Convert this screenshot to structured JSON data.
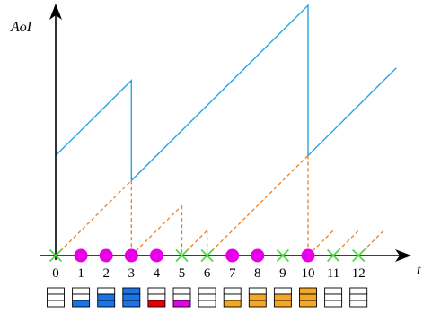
{
  "chart_data": {
    "type": "line",
    "title": "",
    "xlabel": "t",
    "ylabel": "AoI",
    "xlim": [
      0,
      13.5
    ],
    "ylim": [
      0,
      10
    ],
    "grid": false,
    "categories": [
      "0",
      "1",
      "2",
      "3",
      "4",
      "5",
      "6",
      "7",
      "8",
      "9",
      "10",
      "11",
      "12"
    ],
    "series": [
      {
        "kind": "aoi",
        "color": "#2aa3e8",
        "points": [
          [
            0,
            4
          ],
          [
            3,
            7
          ],
          [
            3,
            3
          ],
          [
            10,
            10
          ],
          [
            10,
            4
          ],
          [
            13.5,
            7.5
          ]
        ]
      },
      {
        "kind": "packet-age",
        "color": "#e8802a",
        "segments": [
          [
            [
              0,
              0
            ],
            [
              3,
              3
            ]
          ],
          [
            [
              3,
              0
            ],
            [
              5,
              2
            ]
          ],
          [
            [
              5,
              0
            ],
            [
              6,
              1
            ]
          ],
          [
            [
              6,
              0
            ],
            [
              10,
              4
            ]
          ],
          [
            [
              10,
              0
            ],
            [
              11,
              1
            ]
          ],
          [
            [
              11,
              0
            ],
            [
              12,
              1
            ]
          ],
          [
            [
              12,
              0
            ],
            [
              13,
              1
            ]
          ]
        ],
        "drops": [
          [
            3,
            3
          ],
          [
            5,
            2
          ],
          [
            6,
            1
          ],
          [
            10,
            4
          ]
        ]
      }
    ],
    "events": [
      {
        "t": 0,
        "marker": "cross"
      },
      {
        "t": 1,
        "marker": "circle"
      },
      {
        "t": 2,
        "marker": "circle"
      },
      {
        "t": 3,
        "marker": "circle"
      },
      {
        "t": 4,
        "marker": "circle"
      },
      {
        "t": 5,
        "marker": "cross"
      },
      {
        "t": 6,
        "marker": "cross"
      },
      {
        "t": 7,
        "marker": "circle"
      },
      {
        "t": 8,
        "marker": "circle"
      },
      {
        "t": 9,
        "marker": "cross"
      },
      {
        "t": 10,
        "marker": "circle"
      },
      {
        "t": 11,
        "marker": "cross"
      },
      {
        "t": 12,
        "marker": "cross"
      }
    ],
    "marker_colors": {
      "circle": "#e600e6",
      "cross": "#4cd94c"
    },
    "queues": [
      {
        "t": 0,
        "fill": "none",
        "level": 0
      },
      {
        "t": 1,
        "fill": "#1a73e8",
        "level": 1
      },
      {
        "t": 2,
        "fill": "#1a73e8",
        "level": 2
      },
      {
        "t": 3,
        "fill": "#1a73e8",
        "level": 3
      },
      {
        "t": 4,
        "fill": "#e60000",
        "level": 1
      },
      {
        "t": 5,
        "fill": "#e600e6",
        "level": 1
      },
      {
        "t": 6,
        "fill": "none",
        "level": 0
      },
      {
        "t": 7,
        "fill": "#f5a623",
        "level": 1
      },
      {
        "t": 8,
        "fill": "#f5a623",
        "level": 2
      },
      {
        "t": 9,
        "fill": "#f5a623",
        "level": 2
      },
      {
        "t": 10,
        "fill": "#f5a623",
        "level": 3
      },
      {
        "t": 11,
        "fill": "none",
        "level": 0
      },
      {
        "t": 12,
        "fill": "none",
        "level": 0
      }
    ]
  }
}
